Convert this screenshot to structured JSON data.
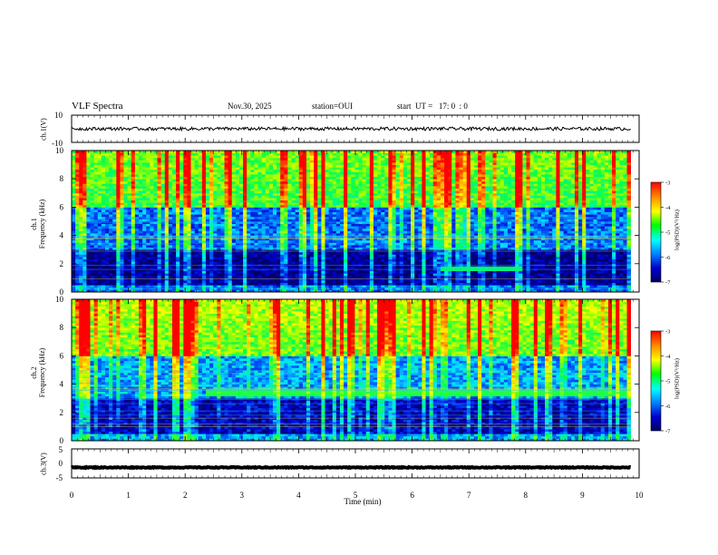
{
  "header": {
    "title": "VLF Spectra",
    "date": "Nov.30, 2025",
    "station": "station=OUI",
    "start": "start  UT =   17: 0  : 0"
  },
  "panels": {
    "ch1v": {
      "ylabel": "ch.1(V)"
    },
    "spec1": {
      "ylabel_channel": "ch.1",
      "ylabel_quantity": "Frequency (kHz)"
    },
    "spec2": {
      "ylabel_channel": "ch.2",
      "ylabel_quantity": "Frequency (kHz)"
    },
    "ch3v": {
      "ylabel": "ch.3(V)"
    }
  },
  "colorbar": {
    "label": "log(PSD)(V²/Hz)",
    "ticks": [
      "-3",
      "-4",
      "-5",
      "-6",
      "-7"
    ],
    "stops": [
      "#ff0000",
      "#ff8c00",
      "#ffff00",
      "#00ff00",
      "#00ffff",
      "#0080ff",
      "#0000cc",
      "#000066"
    ]
  },
  "chart_data": [
    {
      "type": "line",
      "name": "ch.1 waveform",
      "ylabel": "ch.1(V)",
      "ylim": [
        -10,
        10
      ],
      "yticks": [
        "10",
        "-10"
      ],
      "x_range_min": [
        0,
        9.85
      ],
      "mean_level": 0,
      "noise_amplitude": 1.2
    },
    {
      "type": "heatmap",
      "name": "ch.1 spectrogram",
      "xlabel": "Time (min)",
      "ylabel": "ch.1 Frequency (kHz)",
      "ylim": [
        0,
        10
      ],
      "yticks": [
        "10",
        "8",
        "6",
        "4",
        "2",
        "0"
      ],
      "x_range_min": [
        0,
        9.85
      ],
      "color_range_log_psd": [
        -7,
        -3
      ],
      "features": {
        "background_above_6kHz": -5,
        "background_3_to_6kHz": -6,
        "background_below_3kHz": -6.8,
        "persistent_tone_band_kHz": [
          1.6,
          1.75
        ],
        "tone_time_min": [
          6.5,
          7.9
        ]
      }
    },
    {
      "type": "heatmap",
      "name": "ch.2 spectrogram",
      "xlabel": "Time (min)",
      "ylabel": "ch.2 Frequency (kHz)",
      "ylim": [
        0,
        10
      ],
      "yticks": [
        "10",
        "8",
        "6",
        "4",
        "2",
        "0"
      ],
      "x_range_min": [
        0,
        9.85
      ],
      "color_range_log_psd": [
        -7,
        -3
      ],
      "features": {
        "background_above_6kHz": -4.8,
        "background_3_to_6kHz": -5.8,
        "background_below_3kHz": -6.6,
        "persistent_tone_band_kHz": [
          3.3,
          3.6
        ],
        "tone_time_min": [
          2.3,
          9.85
        ]
      }
    },
    {
      "type": "line",
      "name": "ch.3 waveform",
      "ylabel": "ch.3(V)",
      "ylim": [
        -5,
        5
      ],
      "yticks": [
        "5",
        "0",
        "-5"
      ],
      "x_range_min": [
        0,
        9.85
      ],
      "mean_level": -1.4,
      "noise_amplitude": 0.15
    },
    {
      "type": "axis",
      "name": "time axis",
      "xlabel": "Time (min)",
      "xlim": [
        0,
        10
      ],
      "xticks": [
        "0",
        "1",
        "2",
        "3",
        "4",
        "5",
        "6",
        "7",
        "8",
        "9",
        "10"
      ]
    }
  ]
}
